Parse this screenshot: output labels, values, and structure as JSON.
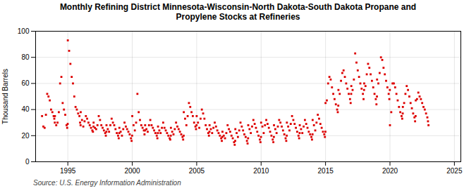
{
  "chart_data": {
    "type": "scatter",
    "title": "Monthly Refining District Minnesota-Wisconsin-North Dakota-South Dakota Propane and\nPropylene Stocks at Refineries",
    "ylabel": "Thousand Barrels",
    "caption": "Source: U.S. Energy Information Administration",
    "color": "#dd0000",
    "marker": "square",
    "grid": true,
    "xlim": [
      1992.5,
      2025.5
    ],
    "xticks": [
      1995,
      2000,
      2005,
      2010,
      2015,
      2020,
      2025
    ],
    "ylim": [
      0,
      100
    ],
    "yticks": [
      0,
      20,
      40,
      60,
      80,
      100
    ],
    "x": [
      1993.0,
      1993.1,
      1993.2,
      1993.3,
      1993.4,
      1993.5,
      1993.6,
      1993.7,
      1993.8,
      1993.9,
      1993.95,
      1993.99,
      1994.0,
      1994.1,
      1994.2,
      1994.3,
      1994.4,
      1994.5,
      1994.6,
      1994.7,
      1994.8,
      1994.9,
      1994.95,
      1994.99,
      1995.0,
      1995.1,
      1995.2,
      1995.3,
      1995.4,
      1995.5,
      1995.6,
      1995.7,
      1995.8,
      1995.9,
      1995.95,
      1995.99,
      1996.0,
      1996.1,
      1996.2,
      1996.3,
      1996.4,
      1996.5,
      1996.6,
      1996.7,
      1996.8,
      1996.9,
      1996.95,
      1996.99,
      1997.0,
      1997.1,
      1997.2,
      1997.3,
      1997.4,
      1997.5,
      1997.6,
      1997.7,
      1997.8,
      1997.9,
      1997.95,
      1997.99,
      1998.0,
      1998.1,
      1998.2,
      1998.3,
      1998.4,
      1998.5,
      1998.6,
      1998.7,
      1998.8,
      1998.9,
      1998.95,
      1998.99,
      1999.0,
      1999.1,
      1999.2,
      1999.3,
      1999.4,
      1999.5,
      1999.6,
      1999.7,
      1999.8,
      1999.9,
      1999.95,
      1999.99,
      2000.0,
      2000.1,
      2000.2,
      2000.3,
      2000.4,
      2000.5,
      2000.6,
      2000.7,
      2000.8,
      2000.9,
      2000.95,
      2000.99,
      2001.0,
      2001.1,
      2001.2,
      2001.3,
      2001.4,
      2001.5,
      2001.6,
      2001.7,
      2001.8,
      2001.9,
      2001.95,
      2001.99,
      2002.0,
      2002.1,
      2002.2,
      2002.3,
      2002.4,
      2002.5,
      2002.6,
      2002.7,
      2002.8,
      2002.9,
      2002.95,
      2002.99,
      2003.0,
      2003.1,
      2003.2,
      2003.3,
      2003.4,
      2003.5,
      2003.6,
      2003.7,
      2003.8,
      2003.9,
      2003.95,
      2003.99,
      2004.0,
      2004.1,
      2004.2,
      2004.3,
      2004.4,
      2004.5,
      2004.6,
      2004.7,
      2004.8,
      2004.9,
      2004.95,
      2004.99,
      2005.0,
      2005.1,
      2005.2,
      2005.3,
      2005.4,
      2005.5,
      2005.6,
      2005.7,
      2005.8,
      2005.9,
      2005.95,
      2005.99,
      2006.0,
      2006.1,
      2006.2,
      2006.3,
      2006.4,
      2006.5,
      2006.6,
      2006.7,
      2006.8,
      2006.9,
      2006.95,
      2006.99,
      2007.0,
      2007.1,
      2007.2,
      2007.3,
      2007.4,
      2007.5,
      2007.6,
      2007.7,
      2007.8,
      2007.9,
      2007.95,
      2007.99,
      2008.0,
      2008.1,
      2008.2,
      2008.3,
      2008.4,
      2008.5,
      2008.6,
      2008.7,
      2008.8,
      2008.9,
      2008.95,
      2008.99,
      2009.0,
      2009.1,
      2009.2,
      2009.3,
      2009.4,
      2009.5,
      2009.6,
      2009.7,
      2009.8,
      2009.9,
      2009.95,
      2009.99,
      2010.0,
      2010.1,
      2010.2,
      2010.3,
      2010.4,
      2010.5,
      2010.6,
      2010.7,
      2010.8,
      2010.9,
      2010.95,
      2010.99,
      2011.0,
      2011.1,
      2011.2,
      2011.3,
      2011.4,
      2011.5,
      2011.6,
      2011.7,
      2011.8,
      2011.9,
      2011.95,
      2011.99,
      2012.0,
      2012.1,
      2012.2,
      2012.3,
      2012.4,
      2012.5,
      2012.6,
      2012.7,
      2012.8,
      2012.9,
      2012.95,
      2012.99,
      2013.0,
      2013.1,
      2013.2,
      2013.3,
      2013.4,
      2013.5,
      2013.6,
      2013.7,
      2013.8,
      2013.9,
      2013.95,
      2013.99,
      2014.0,
      2014.1,
      2014.2,
      2014.3,
      2014.4,
      2014.5,
      2014.6,
      2014.7,
      2014.8,
      2014.9,
      2014.95,
      2014.99,
      2015.0,
      2015.1,
      2015.2,
      2015.3,
      2015.4,
      2015.5,
      2015.6,
      2015.7,
      2015.8,
      2015.9,
      2015.95,
      2015.99,
      2016.0,
      2016.1,
      2016.2,
      2016.3,
      2016.4,
      2016.5,
      2016.6,
      2016.7,
      2016.8,
      2016.9,
      2016.95,
      2016.99,
      2017.0,
      2017.1,
      2017.2,
      2017.3,
      2017.4,
      2017.5,
      2017.6,
      2017.7,
      2017.8,
      2017.9,
      2017.95,
      2017.99,
      2018.0,
      2018.1,
      2018.2,
      2018.3,
      2018.4,
      2018.5,
      2018.6,
      2018.7,
      2018.8,
      2018.9,
      2018.95,
      2018.99,
      2019.0,
      2019.1,
      2019.2,
      2019.3,
      2019.4,
      2019.5,
      2019.6,
      2019.7,
      2019.8,
      2019.9,
      2019.95,
      2019.99,
      2020.0,
      2020.1,
      2020.2,
      2020.3,
      2020.4,
      2020.5,
      2020.6,
      2020.7,
      2020.8,
      2020.9,
      2020.95,
      2020.99,
      2021.0,
      2021.1,
      2021.2,
      2021.3,
      2021.4,
      2021.5,
      2021.6,
      2021.7,
      2021.8,
      2021.9,
      2021.95,
      2021.99,
      2022.0,
      2022.1,
      2022.2,
      2022.3,
      2022.4,
      2022.5,
      2022.6,
      2022.7,
      2022.8,
      2022.9,
      2022.95,
      2022.99
    ],
    "values": [
      35,
      27,
      26,
      36,
      52,
      50,
      47,
      40,
      38,
      35,
      33,
      30,
      35,
      28,
      30,
      38,
      60,
      65,
      45,
      40,
      36,
      28,
      26,
      29,
      93,
      85,
      75,
      65,
      60,
      50,
      42,
      40,
      37,
      35,
      30,
      28,
      38,
      32,
      27,
      31,
      35,
      33,
      30,
      28,
      26,
      24,
      23,
      27,
      30,
      26,
      25,
      28,
      35,
      32,
      28,
      26,
      24,
      22,
      20,
      23,
      28,
      25,
      23,
      28,
      33,
      30,
      28,
      25,
      22,
      20,
      18,
      22,
      26,
      23,
      20,
      25,
      30,
      27,
      25,
      23,
      21,
      18,
      16,
      20,
      35,
      28,
      24,
      30,
      52,
      38,
      32,
      28,
      26,
      24,
      21,
      24,
      28,
      25,
      23,
      28,
      32,
      28,
      26,
      24,
      22,
      20,
      18,
      22,
      27,
      24,
      22,
      26,
      30,
      26,
      24,
      22,
      20,
      18,
      17,
      20,
      26,
      23,
      21,
      25,
      30,
      27,
      25,
      23,
      21,
      19,
      17,
      20,
      38,
      33,
      28,
      35,
      45,
      42,
      38,
      35,
      30,
      27,
      25,
      28,
      35,
      30,
      26,
      33,
      40,
      37,
      33,
      28,
      25,
      22,
      20,
      23,
      28,
      25,
      22,
      26,
      30,
      27,
      24,
      22,
      20,
      18,
      16,
      19,
      23,
      20,
      18,
      22,
      28,
      25,
      23,
      20,
      18,
      15,
      13,
      16,
      25,
      22,
      19,
      24,
      30,
      27,
      24,
      21,
      19,
      16,
      14,
      18,
      28,
      25,
      22,
      27,
      32,
      29,
      26,
      23,
      20,
      17,
      15,
      19,
      30,
      27,
      22,
      28,
      32,
      29,
      26,
      23,
      20,
      17,
      15,
      19,
      28,
      25,
      22,
      27,
      32,
      30,
      27,
      24,
      21,
      18,
      16,
      20,
      30,
      27,
      24,
      29,
      35,
      32,
      29,
      26,
      23,
      20,
      18,
      22,
      28,
      25,
      22,
      27,
      32,
      29,
      26,
      23,
      21,
      19,
      17,
      21,
      32,
      28,
      24,
      30,
      36,
      33,
      29,
      26,
      23,
      21,
      19,
      23,
      45,
      47,
      60,
      65,
      63,
      57,
      52,
      48,
      44,
      40,
      38,
      43,
      55,
      52,
      62,
      68,
      70,
      65,
      60,
      56,
      52,
      48,
      45,
      52,
      58,
      55,
      63,
      83,
      76,
      70,
      65,
      60,
      56,
      52,
      48,
      55,
      60,
      58,
      67,
      75,
      72,
      67,
      62,
      57,
      52,
      48,
      44,
      50,
      63,
      60,
      68,
      80,
      78,
      72,
      67,
      62,
      57,
      52,
      48,
      55,
      28,
      38,
      60,
      60,
      57,
      52,
      47,
      42,
      38,
      35,
      33,
      37,
      42,
      45,
      52,
      58,
      55,
      50,
      45,
      41,
      37,
      34,
      31,
      35,
      47,
      48,
      53,
      50,
      48,
      45,
      42,
      40,
      37,
      34,
      31,
      28
    ]
  }
}
